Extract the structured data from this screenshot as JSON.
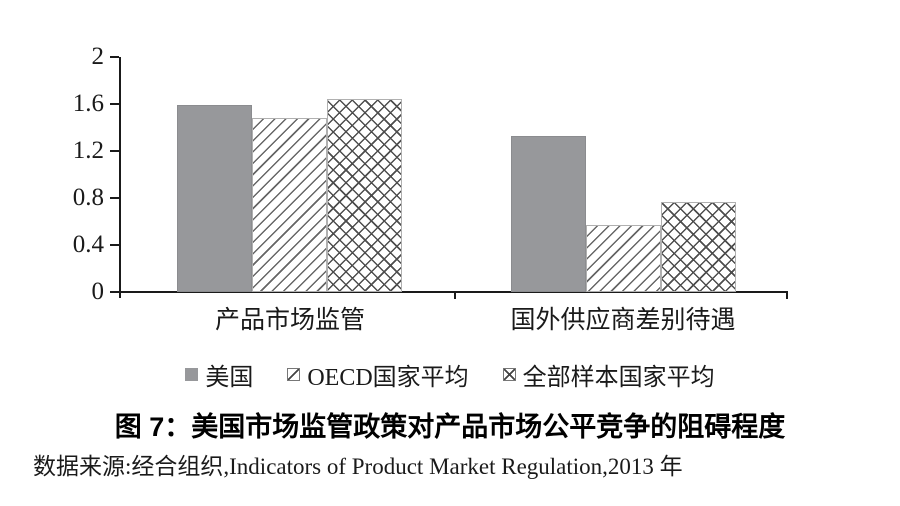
{
  "figure": {
    "title": "图 7：美国市场监管政策对产品市场公平竞争的阻碍程度",
    "source": "数据来源:经合组织,Indicators of Product Market Regulation,2013 年"
  },
  "chart_data": {
    "type": "bar",
    "categories": [
      "产品市场监管",
      "国外供应商差别待遇"
    ],
    "series": [
      {
        "name": "美国",
        "pattern": "solid",
        "values": [
          1.59,
          1.33
        ]
      },
      {
        "name": "OECD国家平均",
        "pattern": "diagonal",
        "values": [
          1.48,
          0.57
        ]
      },
      {
        "name": "全部样本国家平均",
        "pattern": "crosshatch",
        "values": [
          1.64,
          0.77
        ]
      }
    ],
    "title": "",
    "xlabel": "",
    "ylabel": "",
    "ylim": [
      0,
      2
    ],
    "yticks": [
      0,
      0.4,
      0.8,
      1.2,
      1.6,
      2
    ],
    "grid": false,
    "legend_position": "bottom",
    "colors": {
      "bar_solid": "#97989b",
      "hatch_line": "#4d4d4d",
      "axis": "#1a1a1a",
      "hatch_bar_border": "#b0b0b0",
      "background": "#ffffff"
    }
  }
}
